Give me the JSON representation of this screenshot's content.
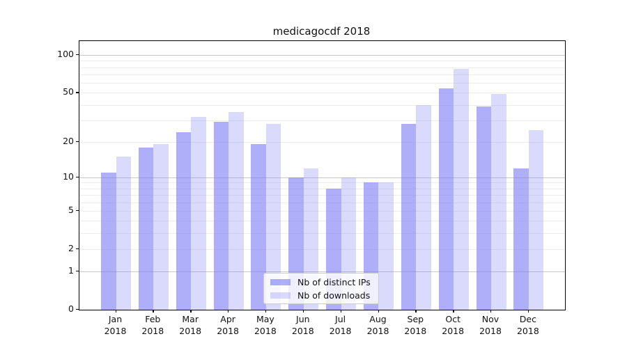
{
  "title": "medicagocdf 2018",
  "chart_data": {
    "type": "bar",
    "categories": [
      "Jan 2018",
      "Feb 2018",
      "Mar 2018",
      "Apr 2018",
      "May 2018",
      "Jun 2018",
      "Jul 2018",
      "Aug 2018",
      "Sep 2018",
      "Oct 2018",
      "Nov 2018",
      "Dec 2018"
    ],
    "series": [
      {
        "name": "Nb of distinct IPs",
        "color": "rgba(120,120,245,0.60)",
        "values": [
          11,
          18,
          24,
          29,
          19,
          10,
          8,
          9,
          28,
          54,
          39,
          12
        ]
      },
      {
        "name": "Nb of downloads",
        "color": "rgba(120,120,245,0.27)",
        "values": [
          15,
          19,
          32,
          35,
          28,
          12,
          10,
          9,
          40,
          78,
          49,
          25
        ]
      }
    ],
    "title": "medicagocdf 2018",
    "xlabel": "",
    "ylabel": "",
    "y_scale": "log1p",
    "yticks": [
      0,
      1,
      2,
      5,
      10,
      20,
      50,
      100
    ],
    "ylim": [
      0,
      130
    ],
    "grid": "horizontal, minor lines at 2-9, 20-90; darker at 1, 10, 100",
    "legend_position": "lower center-right inside plot"
  }
}
